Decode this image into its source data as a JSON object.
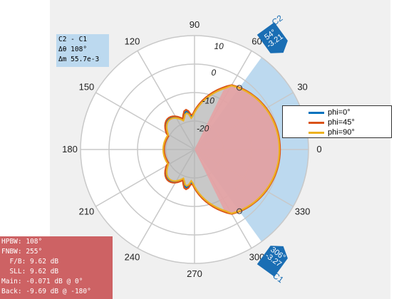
{
  "delta_readout": {
    "line1": "C2 - C1",
    "line2": "Δθ 108°",
    "line3": "Δm 55.7e-3"
  },
  "angle_labels": [
    "0",
    "30",
    "60",
    "90",
    "120",
    "150",
    "180",
    "210",
    "240",
    "270",
    "300",
    "330"
  ],
  "radial_labels": [
    "10",
    "0",
    "-10",
    "-20"
  ],
  "legend": [
    {
      "label": "phi=0°",
      "color": "#0072bd"
    },
    {
      "label": "phi=45°",
      "color": "#d95319"
    },
    {
      "label": "phi=90°",
      "color": "#edb120"
    }
  ],
  "cursors": [
    {
      "name": "C2",
      "angle": "54°",
      "value": "-3.21"
    },
    {
      "name": "C1",
      "angle": "306°",
      "value": "-3.27"
    }
  ],
  "metrics": {
    "hpbw": "HPBW: 108°",
    "fnbw": "FNBW: 255°",
    "fb": "  F/B: 9.62 dB",
    "sll": "  SLL: 9.62 dB",
    "main": "Main: -0.071 dB @ 0°",
    "back": "Back: -9.69 dB @ -180°"
  },
  "colors": {
    "span_fill": "#bcd9ef",
    "lobe_fill": "#e8a0a2",
    "backlobe_fill": "#b0b0b0",
    "cursor_marker": "#1a6eb4",
    "metrics_bg": "#cd6264"
  }
}
